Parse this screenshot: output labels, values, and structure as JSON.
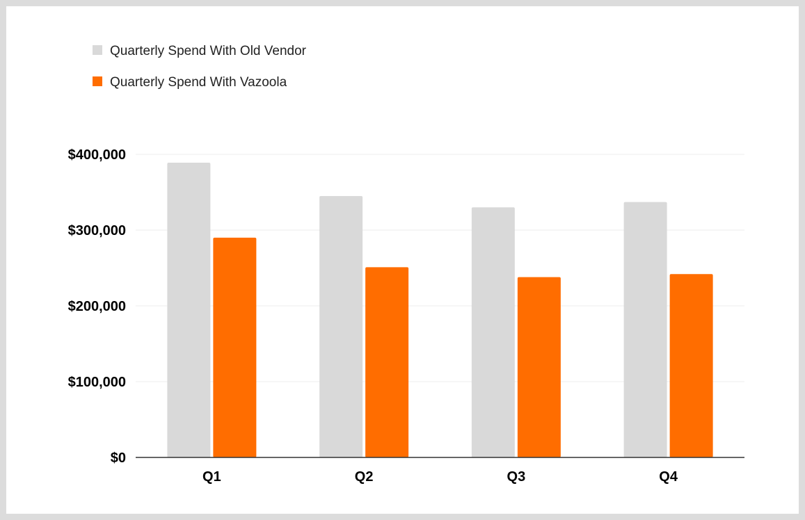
{
  "chart_data": {
    "type": "bar",
    "categories": [
      "Q1",
      "Q2",
      "Q3",
      "Q4"
    ],
    "series": [
      {
        "name": "Quarterly Spend With Old Vendor",
        "values": [
          389000,
          345000,
          330000,
          337000
        ],
        "color": "#d9d9d9"
      },
      {
        "name": "Quarterly Spend With Vazoola",
        "values": [
          290000,
          251000,
          238000,
          242000
        ],
        "color": "#ff6d00"
      }
    ],
    "ylim": [
      0,
      400000
    ],
    "yticks": [
      0,
      100000,
      200000,
      300000,
      400000
    ],
    "ytick_labels": [
      "$0",
      "$100,000",
      "$200,000",
      "$300,000",
      "$400,000"
    ],
    "grid": true,
    "legend_position": "top-left",
    "title": "",
    "xlabel": "",
    "ylabel": ""
  }
}
